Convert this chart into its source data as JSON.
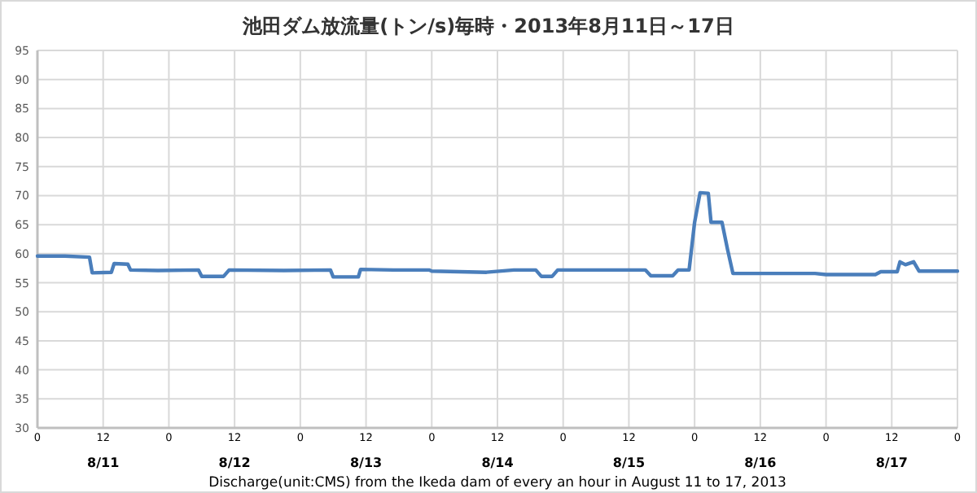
{
  "chart_data": {
    "type": "line",
    "title": "池田ダム放流量(トン/s)毎時・2013年8月11日～17日",
    "xlabel": "Discharge(unit:CMS) from the Ikeda dam of every an hour in August 11 to 17, 2013",
    "x": [
      "2013-08-11T00:00",
      "2013-08-11T05:00",
      "2013-08-11T09:30",
      "2013-08-11T10:00",
      "2013-08-11T13:30",
      "2013-08-11T14:00",
      "2013-08-11T16:30",
      "2013-08-11T17:00",
      "2013-08-11T22:00",
      "2013-08-12T05:24",
      "2013-08-12T06:00",
      "2013-08-12T10:00",
      "2013-08-12T11:00",
      "2013-08-12T21:00",
      "2013-08-13T05:30",
      "2013-08-13T06:00",
      "2013-08-13T10:36",
      "2013-08-13T11:00",
      "2013-08-13T17:00",
      "2013-08-13T23:30",
      "2013-08-14T00:00",
      "2013-08-14T10:00",
      "2013-08-14T15:00",
      "2013-08-14T19:00",
      "2013-08-14T20:00",
      "2013-08-14T22:00",
      "2013-08-14T23:00",
      "2013-08-15T07:00",
      "2013-08-15T15:00",
      "2013-08-15T16:00",
      "2013-08-15T20:00",
      "2013-08-15T21:00",
      "2013-08-15T23:00",
      "2013-08-16T00:00",
      "2013-08-16T01:00",
      "2013-08-16T02:30",
      "2013-08-16T03:00",
      "2013-08-16T05:00",
      "2013-08-16T06:00",
      "2013-08-16T07:00",
      "2013-08-16T15:00",
      "2013-08-16T22:00",
      "2013-08-17T00:00",
      "2013-08-17T09:00",
      "2013-08-17T10:00",
      "2013-08-17T13:00",
      "2013-08-17T13:30",
      "2013-08-17T14:30",
      "2013-08-17T16:00",
      "2013-08-17T17:00",
      "2013-08-18T00:00"
    ],
    "series": [
      {
        "color": "#4a7ebb",
        "values": [
          59.6,
          59.6,
          59.4,
          56.7,
          56.8,
          58.3,
          58.2,
          57.2,
          57.1,
          57.2,
          56.1,
          56.1,
          57.2,
          57.1,
          57.2,
          56.0,
          56.0,
          57.3,
          57.2,
          57.2,
          57.0,
          56.8,
          57.2,
          57.2,
          56.1,
          56.1,
          57.2,
          57.2,
          57.2,
          56.2,
          56.2,
          57.2,
          57.2,
          65.4,
          70.5,
          70.4,
          65.4,
          65.4,
          60.8,
          56.6,
          56.6,
          56.6,
          56.4,
          56.4,
          56.9,
          56.9,
          58.6,
          58.1,
          58.6,
          57.0,
          57.0
        ]
      }
    ],
    "xlim": [
      "2013-08-11T00:00",
      "2013-08-18T00:00"
    ],
    "ylim": [
      30,
      95
    ],
    "xticks": [
      {
        "value": "2013-08-11T00:00",
        "label": "0"
      },
      {
        "value": "2013-08-11T12:00",
        "label": "12\n8/11"
      },
      {
        "value": "2013-08-12T00:00",
        "label": "0"
      },
      {
        "value": "2013-08-12T12:00",
        "label": "12\n8/12"
      },
      {
        "value": "2013-08-13T00:00",
        "label": "0"
      },
      {
        "value": "2013-08-13T12:00",
        "label": "12\n8/13"
      },
      {
        "value": "2013-08-14T00:00",
        "label": "0"
      },
      {
        "value": "2013-08-14T12:00",
        "label": "12\n8/14"
      },
      {
        "value": "2013-08-15T00:00",
        "label": "0"
      },
      {
        "value": "2013-08-15T12:00",
        "label": "12\n8/15"
      },
      {
        "value": "2013-08-16T00:00",
        "label": "0"
      },
      {
        "value": "2013-08-16T12:00",
        "label": "12\n8/16"
      },
      {
        "value": "2013-08-17T00:00",
        "label": "0"
      },
      {
        "value": "2013-08-17T12:00",
        "label": "12\n8/17"
      },
      {
        "value": "2013-08-18T00:00",
        "label": "0"
      }
    ],
    "yticks": [
      30,
      35,
      40,
      45,
      50,
      55,
      60,
      65,
      70,
      75,
      80,
      85,
      90,
      95
    ],
    "grid": true
  }
}
